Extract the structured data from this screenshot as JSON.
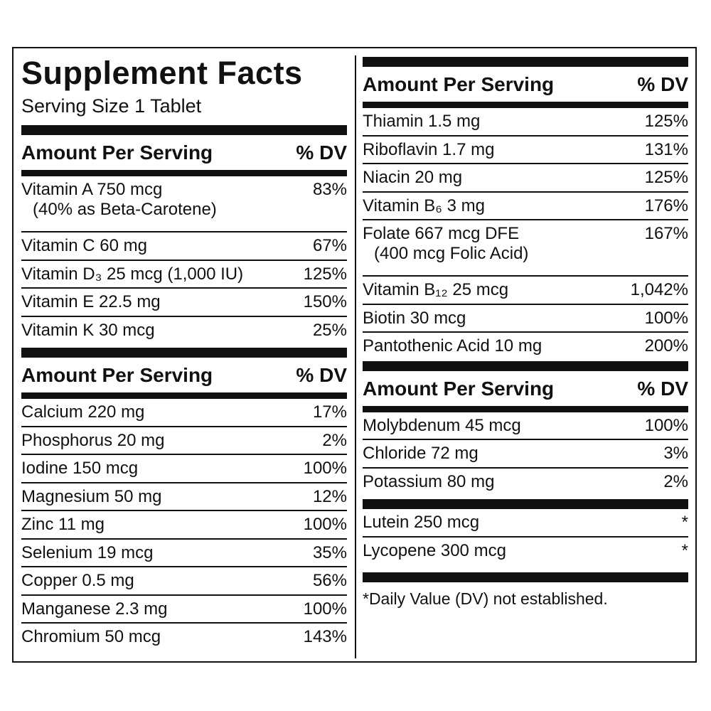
{
  "left": {
    "title": "Supplement Facts",
    "serving_size": "Serving Size 1 Tablet",
    "sections": [
      {
        "header": {
          "amount": "Amount Per Serving",
          "dv": "% DV"
        },
        "rows": [
          {
            "name": "Vitamin A 750 mcg",
            "note": "(40% as Beta-Carotene)",
            "dv": "83%"
          },
          {
            "name": "Vitamin C 60 mg",
            "dv": "67%"
          },
          {
            "name": "Vitamin D₃ 25 mcg (1,000 IU)",
            "dv": "125%"
          },
          {
            "name": "Vitamin E 22.5 mg",
            "dv": "150%"
          },
          {
            "name": "Vitamin K 30 mcg",
            "dv": "25%"
          }
        ]
      },
      {
        "header": {
          "amount": "Amount Per Serving",
          "dv": "% DV"
        },
        "rows": [
          {
            "name": "Calcium 220 mg",
            "dv": "17%"
          },
          {
            "name": "Phosphorus 20 mg",
            "dv": "2%"
          },
          {
            "name": "Iodine 150 mcg",
            "dv": "100%"
          },
          {
            "name": "Magnesium 50 mg",
            "dv": "12%"
          },
          {
            "name": "Zinc 11 mg",
            "dv": "100%"
          },
          {
            "name": "Selenium 19 mcg",
            "dv": "35%"
          },
          {
            "name": "Copper 0.5 mg",
            "dv": "56%"
          },
          {
            "name": "Manganese 2.3 mg",
            "dv": "100%"
          },
          {
            "name": "Chromium 50 mcg",
            "dv": "143%"
          }
        ]
      }
    ]
  },
  "right": {
    "sections": [
      {
        "header": {
          "amount": "Amount Per Serving",
          "dv": "% DV"
        },
        "rows": [
          {
            "name": "Thiamin 1.5 mg",
            "dv": "125%"
          },
          {
            "name": "Riboflavin 1.7 mg",
            "dv": "131%"
          },
          {
            "name": "Niacin 20 mg",
            "dv": "125%"
          },
          {
            "name": "Vitamin B₆ 3 mg",
            "dv": "176%"
          },
          {
            "name": "Folate 667 mcg DFE",
            "note": "(400 mcg Folic Acid)",
            "dv": "167%"
          },
          {
            "name": "Vitamin B₁₂ 25 mcg",
            "dv": "1,042%"
          },
          {
            "name": "Biotin 30 mcg",
            "dv": "100%"
          },
          {
            "name": "Pantothenic Acid 10 mg",
            "dv": "200%"
          }
        ]
      },
      {
        "header": {
          "amount": "Amount Per Serving",
          "dv": "% DV"
        },
        "rows": [
          {
            "name": "Molybdenum 45 mcg",
            "dv": "100%"
          },
          {
            "name": "Chloride 72 mg",
            "dv": "3%"
          },
          {
            "name": "Potassium 80 mg",
            "dv": "2%"
          }
        ]
      },
      {
        "rows": [
          {
            "name": "Lutein 250 mcg",
            "dv": "*"
          },
          {
            "name": "Lycopene 300 mcg",
            "dv": "*"
          }
        ]
      }
    ],
    "footnote": "*Daily Value (DV) not established."
  }
}
